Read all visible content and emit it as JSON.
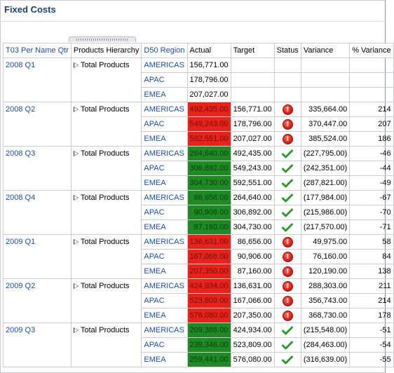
{
  "title": "Fixed Costs",
  "columns": {
    "period": "T03 Per Name Qtr",
    "product": "Products Hierarchy",
    "region": "D50 Region",
    "actual": "Actual",
    "target": "Target",
    "status": "Status",
    "variance": "Variance",
    "pct_variance": "% Variance"
  },
  "colors": {
    "actual_red": "#e8231c",
    "actual_green": "#1f8a25",
    "link_blue": "#1c4d9a",
    "title_blue": "#1b3f73"
  },
  "groups": [
    {
      "period": "2008 Q1",
      "product": "Total Products",
      "rows": [
        {
          "region": "AMERICAS",
          "actual": "156,771.00",
          "target": "",
          "status": "none",
          "variance": "",
          "pct": ""
        },
        {
          "region": "APAC",
          "actual": "178,796.00",
          "target": "",
          "status": "none",
          "variance": "",
          "pct": ""
        },
        {
          "region": "EMEA",
          "actual": "207,027.00",
          "target": "",
          "status": "none",
          "variance": "",
          "pct": ""
        }
      ]
    },
    {
      "period": "2008 Q2",
      "product": "Total Products",
      "rows": [
        {
          "region": "AMERICAS",
          "actual": "492,435.00",
          "target": "156,771.00",
          "status": "warning",
          "variance": "335,664.00",
          "pct": "214"
        },
        {
          "region": "APAC",
          "actual": "549,243.00",
          "target": "178,796.00",
          "status": "warning",
          "variance": "370,447.00",
          "pct": "207"
        },
        {
          "region": "EMEA",
          "actual": "592,551.00",
          "target": "207,027.00",
          "status": "warning",
          "variance": "385,524.00",
          "pct": "186"
        }
      ]
    },
    {
      "period": "2008 Q3",
      "product": "Total Products",
      "rows": [
        {
          "region": "AMERICAS",
          "actual": "264,640.00",
          "target": "492,435.00",
          "status": "ok",
          "variance": "(227,795.00)",
          "pct": "-46"
        },
        {
          "region": "APAC",
          "actual": "306,892.00",
          "target": "549,243.00",
          "status": "ok",
          "variance": "(242,351.00)",
          "pct": "-44"
        },
        {
          "region": "EMEA",
          "actual": "304,730.00",
          "target": "592,551.00",
          "status": "ok",
          "variance": "(287,821.00)",
          "pct": "-49"
        }
      ]
    },
    {
      "period": "2008 Q4",
      "product": "Total Products",
      "rows": [
        {
          "region": "AMERICAS",
          "actual": "86,656.00",
          "target": "264,640.00",
          "status": "ok",
          "variance": "(177,984.00)",
          "pct": "-67"
        },
        {
          "region": "APAC",
          "actual": "90,906.00",
          "target": "306,892.00",
          "status": "ok",
          "variance": "(215,986.00)",
          "pct": "-70"
        },
        {
          "region": "EMEA",
          "actual": "87,160.00",
          "target": "304,730.00",
          "status": "ok",
          "variance": "(217,570.00)",
          "pct": "-71"
        }
      ]
    },
    {
      "period": "2009 Q1",
      "product": "Total Products",
      "rows": [
        {
          "region": "AMERICAS",
          "actual": "136,631.00",
          "target": "86,656.00",
          "status": "warning",
          "variance": "49,975.00",
          "pct": "58"
        },
        {
          "region": "APAC",
          "actual": "167,066.00",
          "target": "90,906.00",
          "status": "warning",
          "variance": "76,160.00",
          "pct": "84"
        },
        {
          "region": "EMEA",
          "actual": "207,350.00",
          "target": "87,160.00",
          "status": "warning",
          "variance": "120,190.00",
          "pct": "138"
        }
      ]
    },
    {
      "period": "2009 Q2",
      "product": "Total Products",
      "rows": [
        {
          "region": "AMERICAS",
          "actual": "424,934.00",
          "target": "136,631.00",
          "status": "warning",
          "variance": "288,303.00",
          "pct": "211"
        },
        {
          "region": "APAC",
          "actual": "523,809.00",
          "target": "167,066.00",
          "status": "warning",
          "variance": "356,743.00",
          "pct": "214"
        },
        {
          "region": "EMEA",
          "actual": "576,080.00",
          "target": "207,350.00",
          "status": "warning",
          "variance": "368,730.00",
          "pct": "178"
        }
      ]
    },
    {
      "period": "2009 Q3",
      "product": "Total Products",
      "rows": [
        {
          "region": "AMERICAS",
          "actual": "209,386.00",
          "target": "424,934.00",
          "status": "ok",
          "variance": "(215,548.00)",
          "pct": "-51"
        },
        {
          "region": "APAC",
          "actual": "239,346.00",
          "target": "523,809.00",
          "status": "ok",
          "variance": "(284,463.00)",
          "pct": "-54"
        },
        {
          "region": "EMEA",
          "actual": "259,441.00",
          "target": "576,080.00",
          "status": "ok",
          "variance": "(316,639.00)",
          "pct": "-55"
        }
      ]
    }
  ]
}
